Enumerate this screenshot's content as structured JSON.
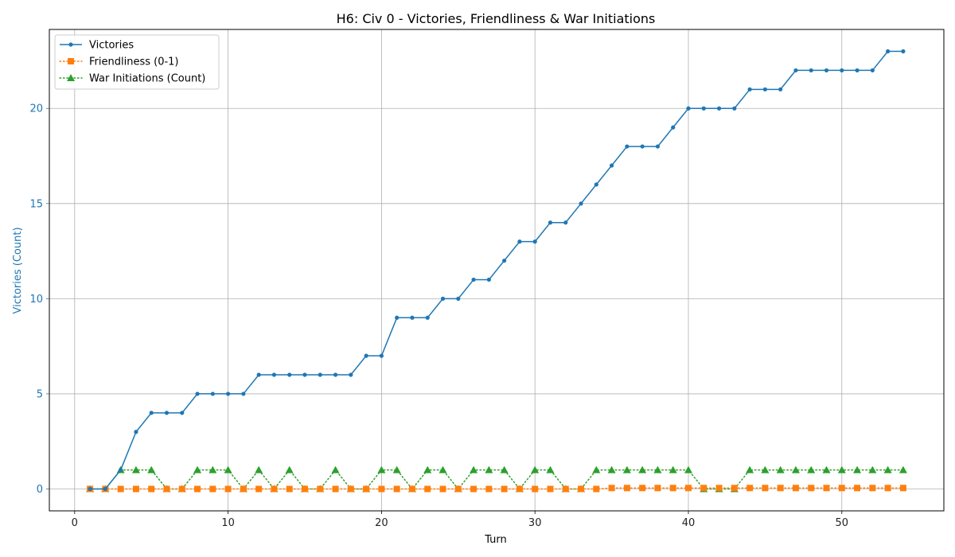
{
  "chart_data": {
    "type": "line",
    "title": "H6: Civ 0 - Victories, Friendliness & War Initiations",
    "xlabel": "Turn",
    "ylabel": "Victories (Count)",
    "xlim": [
      -1.65,
      56.65
    ],
    "ylim": [
      -1.15,
      24.15
    ],
    "xticks": [
      0,
      10,
      20,
      30,
      40,
      50
    ],
    "yticks": [
      0,
      5,
      10,
      15,
      20
    ],
    "grid": true,
    "legend_position": "upper-left",
    "x": [
      1,
      2,
      3,
      4,
      5,
      6,
      7,
      8,
      9,
      10,
      11,
      12,
      13,
      14,
      15,
      16,
      17,
      18,
      19,
      20,
      21,
      22,
      23,
      24,
      25,
      26,
      27,
      28,
      29,
      30,
      31,
      32,
      33,
      34,
      35,
      36,
      37,
      38,
      39,
      40,
      41,
      42,
      43,
      44,
      45,
      46,
      47,
      48,
      49,
      50,
      51,
      52,
      53,
      54
    ],
    "series": [
      {
        "name": "Victories",
        "color": "#1f77b4",
        "style": "solid",
        "marker": "circle",
        "values": [
          0,
          0,
          1,
          3,
          4,
          4,
          4,
          5,
          5,
          5,
          5,
          6,
          6,
          6,
          6,
          6,
          6,
          6,
          7,
          7,
          9,
          9,
          9,
          10,
          10,
          11,
          11,
          12,
          13,
          13,
          14,
          14,
          15,
          16,
          17,
          18,
          18,
          18,
          19,
          20,
          20,
          20,
          20,
          21,
          21,
          21,
          22,
          22,
          22,
          22,
          22,
          22,
          23,
          23
        ]
      },
      {
        "name": "Friendliness (0-1)",
        "color": "#ff7f0e",
        "style": "dotted",
        "marker": "square",
        "values": [
          0,
          0,
          0,
          0,
          0,
          0,
          0,
          0,
          0,
          0,
          0,
          0,
          0,
          0,
          0,
          0,
          0,
          0,
          0,
          0,
          0,
          0,
          0,
          0,
          0,
          0,
          0,
          0,
          0,
          0,
          0,
          0,
          0,
          0,
          0.05,
          0.05,
          0.05,
          0.05,
          0.05,
          0.05,
          0.05,
          0.05,
          0.05,
          0.05,
          0.05,
          0.05,
          0.05,
          0.05,
          0.05,
          0.05,
          0.05,
          0.05,
          0.05,
          0.05
        ]
      },
      {
        "name": "War Initiations (Count)",
        "color": "#2ca02c",
        "style": "dotted",
        "marker": "triangle",
        "values": [
          0,
          0,
          1,
          1,
          1,
          0,
          0,
          1,
          1,
          1,
          0,
          1,
          0,
          1,
          0,
          0,
          1,
          0,
          0,
          1,
          1,
          0,
          1,
          1,
          0,
          1,
          1,
          1,
          0,
          1,
          1,
          0,
          0,
          1,
          1,
          1,
          1,
          1,
          1,
          1,
          0,
          0,
          0,
          1,
          1,
          1,
          1,
          1,
          1,
          1,
          1,
          1,
          1,
          1
        ]
      }
    ]
  }
}
